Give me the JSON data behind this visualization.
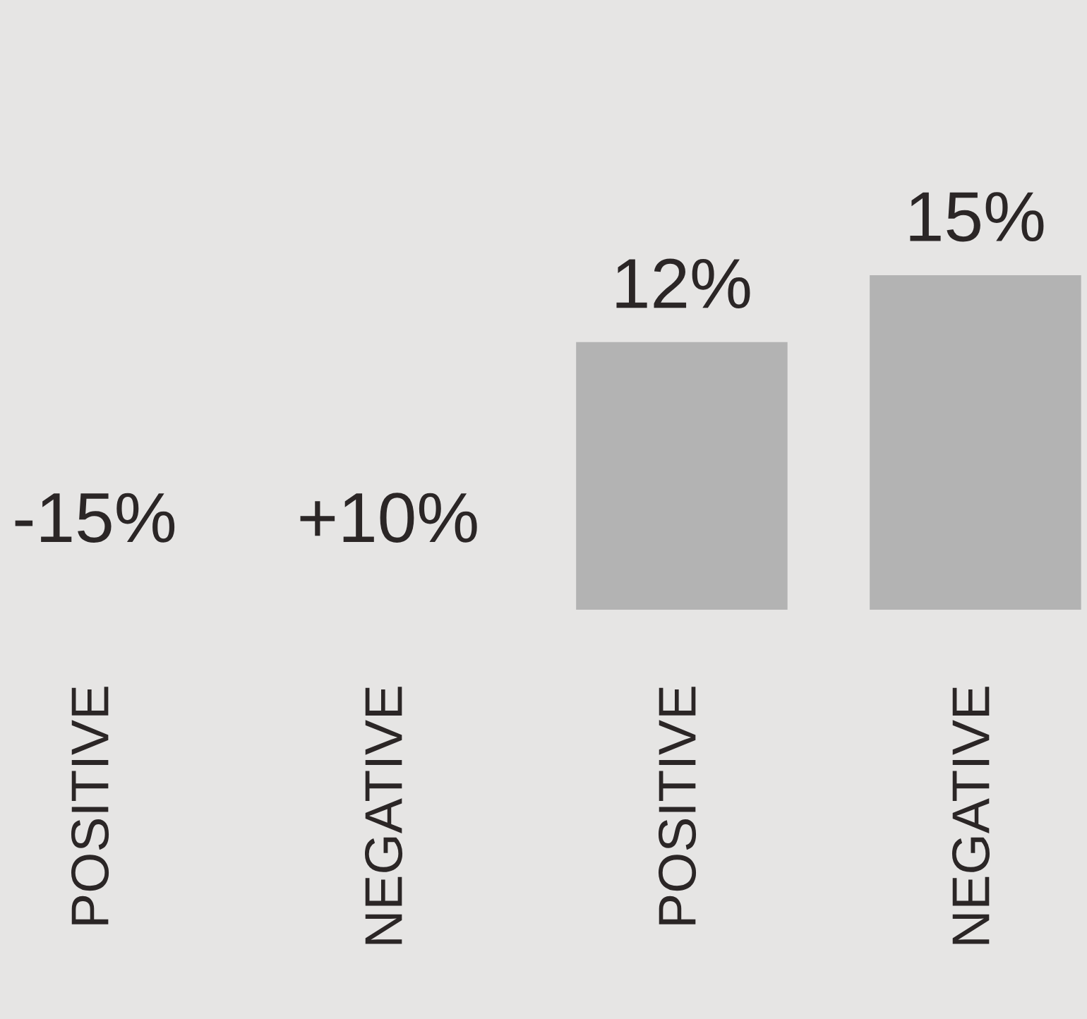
{
  "chart_data": {
    "type": "bar",
    "categories": [
      "POSITIVE",
      "NEGATIVE",
      "POSITIVE",
      "NEGATIVE"
    ],
    "values": [
      null,
      null,
      12,
      15
    ],
    "value_labels": [
      "-15%",
      "+10%",
      "12%",
      "15%"
    ],
    "color": "#b3b3b3"
  }
}
